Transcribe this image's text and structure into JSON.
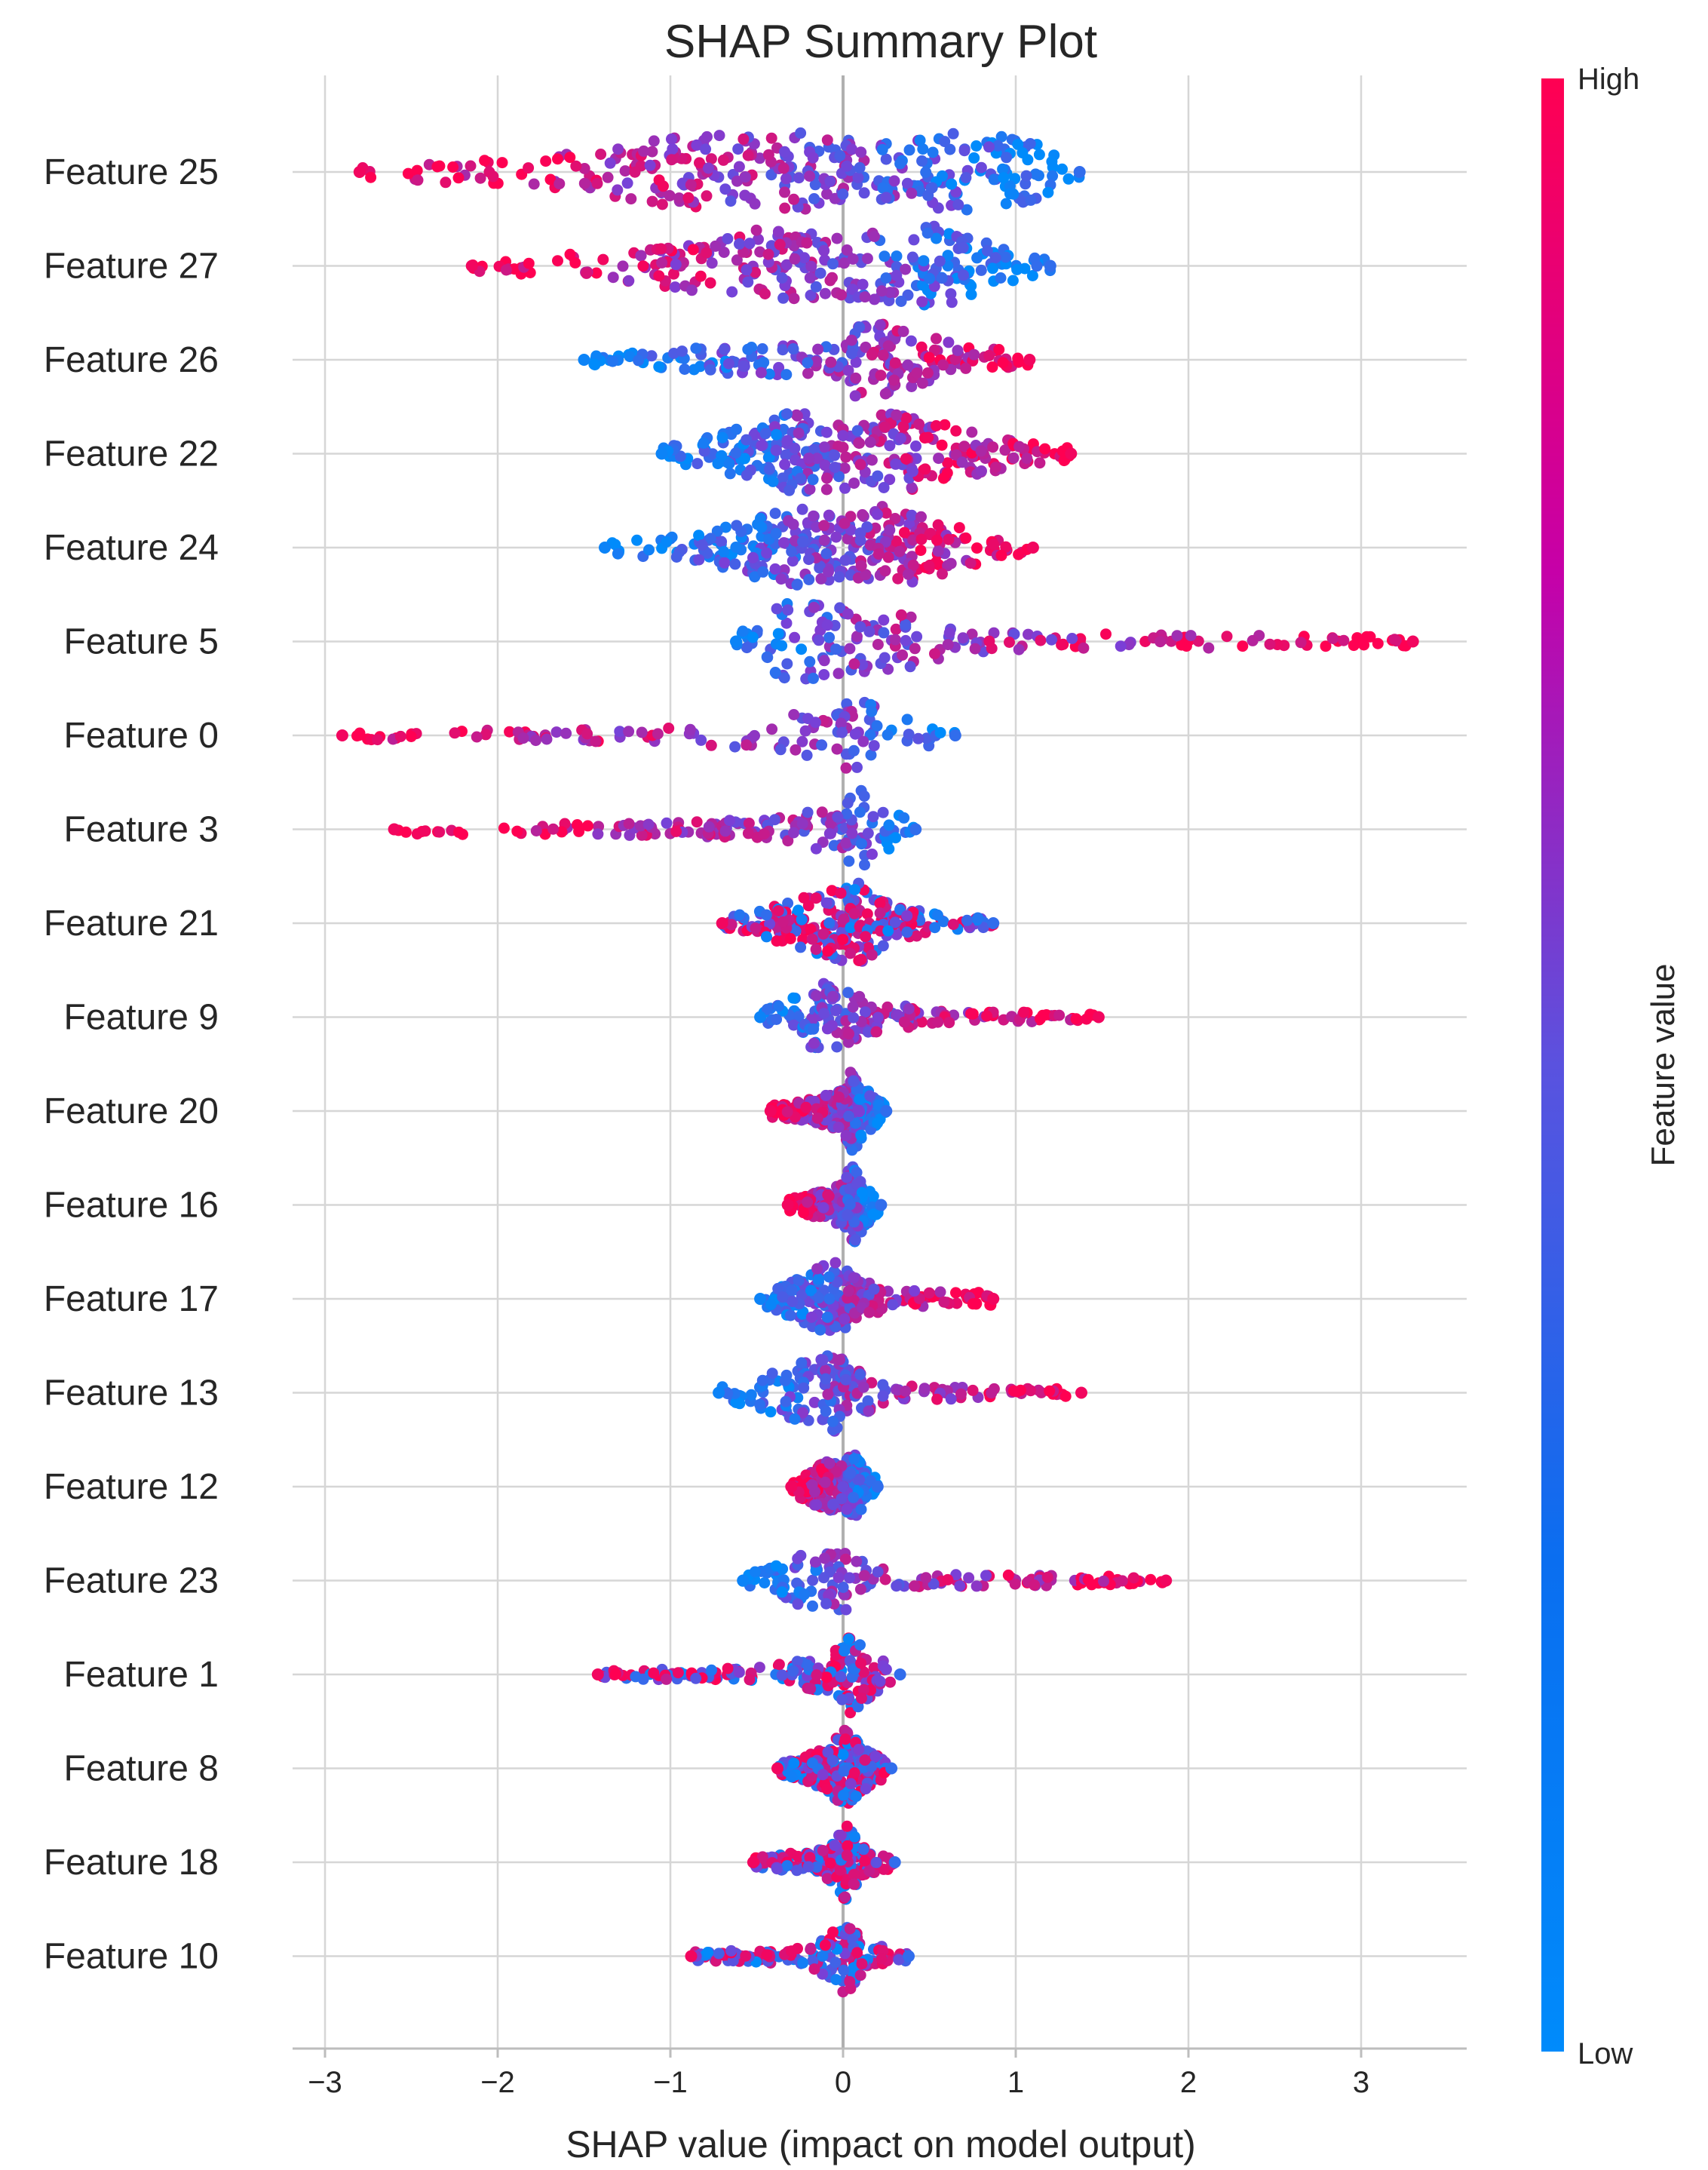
{
  "chart_data": {
    "type": "scatter",
    "title": "SHAP Summary Plot",
    "xlabel": "SHAP value (impact on model output)",
    "xlim": [
      -3.2,
      3.6
    ],
    "x_ticks": [
      {
        "value": -3,
        "label": "−3"
      },
      {
        "value": -2,
        "label": "−2"
      },
      {
        "value": -1,
        "label": "−1"
      },
      {
        "value": 0,
        "label": "0"
      },
      {
        "value": 1,
        "label": "1"
      },
      {
        "value": 2,
        "label": "2"
      },
      {
        "value": 3,
        "label": "3"
      }
    ],
    "grid": true,
    "colorbar": {
      "label": "Feature value",
      "high_label": "High",
      "low_label": "Low",
      "high_color": "#ff0052",
      "mid_color": "#7b3fd6",
      "low_color": "#008bfb"
    },
    "features": [
      {
        "name": "Feature 25",
        "min": -2.8,
        "max": 1.37,
        "mode": "lowpos",
        "profile": [
          [
            -2.8,
            0.15
          ],
          [
            -1.8,
            0.35
          ],
          [
            -1.0,
            0.8
          ],
          [
            -0.3,
            1.0
          ],
          [
            0.2,
            0.65
          ],
          [
            0.7,
            1.0
          ],
          [
            1.1,
            0.7
          ],
          [
            1.37,
            0.2
          ]
        ]
      },
      {
        "name": "Feature 27",
        "min": -2.15,
        "max": 1.2,
        "mode": "lowpos",
        "profile": [
          [
            -2.15,
            0.12
          ],
          [
            -1.2,
            0.4
          ],
          [
            -0.5,
            0.85
          ],
          [
            0.0,
            0.75
          ],
          [
            0.4,
            0.9
          ],
          [
            0.6,
            1.0
          ],
          [
            0.9,
            0.45
          ],
          [
            1.2,
            0.15
          ]
        ]
      },
      {
        "name": "Feature 26",
        "min": -1.5,
        "max": 1.08,
        "mode": "lowneg",
        "profile": [
          [
            -1.5,
            0.1
          ],
          [
            -0.7,
            0.35
          ],
          [
            -0.1,
            0.5
          ],
          [
            0.1,
            0.95
          ],
          [
            0.3,
            0.8
          ],
          [
            0.6,
            0.45
          ],
          [
            1.08,
            0.12
          ]
        ]
      },
      {
        "name": "Feature 22",
        "min": -1.05,
        "max": 1.32,
        "mode": "lowneg",
        "profile": [
          [
            -1.05,
            0.15
          ],
          [
            -0.6,
            0.6
          ],
          [
            -0.3,
            1.0
          ],
          [
            0.0,
            0.85
          ],
          [
            0.3,
            0.95
          ],
          [
            0.7,
            0.6
          ],
          [
            1.0,
            0.3
          ],
          [
            1.32,
            0.15
          ]
        ]
      },
      {
        "name": "Feature 24",
        "min": -1.38,
        "max": 1.1,
        "mode": "lowneg",
        "profile": [
          [
            -1.38,
            0.12
          ],
          [
            -0.8,
            0.35
          ],
          [
            -0.3,
            1.0
          ],
          [
            0.0,
            0.7
          ],
          [
            0.25,
            1.0
          ],
          [
            0.6,
            0.6
          ],
          [
            0.9,
            0.25
          ],
          [
            1.1,
            0.12
          ]
        ]
      },
      {
        "name": "Feature 5",
        "min": -0.62,
        "max": 3.3,
        "mode": "lowneg",
        "profile": [
          [
            -0.62,
            0.15
          ],
          [
            -0.3,
            1.0
          ],
          [
            0.0,
            0.8
          ],
          [
            0.4,
            0.6
          ],
          [
            0.8,
            0.25
          ],
          [
            1.5,
            0.18
          ],
          [
            2.5,
            0.15
          ],
          [
            3.3,
            0.1
          ]
        ]
      },
      {
        "name": "Feature 0",
        "min": -2.9,
        "max": 0.65,
        "mode": "lowpos",
        "profile": [
          [
            -2.9,
            0.1
          ],
          [
            -1.2,
            0.15
          ],
          [
            -0.5,
            0.3
          ],
          [
            -0.05,
            0.7
          ],
          [
            0.1,
            1.0
          ],
          [
            0.25,
            0.5
          ],
          [
            0.65,
            0.12
          ]
        ]
      },
      {
        "name": "Feature 3",
        "min": -2.6,
        "max": 0.42,
        "mode": "lowpos",
        "profile": [
          [
            -2.6,
            0.12
          ],
          [
            -1.0,
            0.15
          ],
          [
            -0.3,
            0.3
          ],
          [
            0.0,
            0.7
          ],
          [
            0.1,
            0.95
          ],
          [
            0.25,
            0.5
          ],
          [
            0.42,
            0.12
          ]
        ]
      },
      {
        "name": "Feature 21",
        "min": -0.7,
        "max": 0.87,
        "mode": "mixed",
        "profile": [
          [
            -0.7,
            0.12
          ],
          [
            -0.3,
            0.55
          ],
          [
            0.0,
            0.9
          ],
          [
            0.1,
            0.95
          ],
          [
            0.3,
            0.4
          ],
          [
            0.6,
            0.18
          ],
          [
            0.87,
            0.1
          ]
        ]
      },
      {
        "name": "Feature 9",
        "min": -0.48,
        "max": 1.48,
        "mode": "lowneg",
        "profile": [
          [
            -0.48,
            0.12
          ],
          [
            -0.1,
            0.9
          ],
          [
            0.0,
            0.7
          ],
          [
            0.2,
            0.35
          ],
          [
            0.6,
            0.15
          ],
          [
            1.3,
            0.1
          ],
          [
            1.48,
            0.08
          ]
        ]
      },
      {
        "name": "Feature 20",
        "min": -0.42,
        "max": 0.25,
        "mode": "lowpos",
        "profile": [
          [
            -0.42,
            0.15
          ],
          [
            -0.15,
            0.3
          ],
          [
            0.0,
            0.5
          ],
          [
            0.05,
            1.0
          ],
          [
            0.12,
            0.6
          ],
          [
            0.25,
            0.12
          ]
        ]
      },
      {
        "name": "Feature 16",
        "min": -0.32,
        "max": 0.22,
        "mode": "lowpos",
        "profile": [
          [
            -0.32,
            0.15
          ],
          [
            -0.1,
            0.35
          ],
          [
            0.0,
            0.5
          ],
          [
            0.05,
            1.0
          ],
          [
            0.12,
            0.55
          ],
          [
            0.22,
            0.12
          ]
        ]
      },
      {
        "name": "Feature 17",
        "min": -0.48,
        "max": 0.87,
        "mode": "lowneg",
        "profile": [
          [
            -0.48,
            0.12
          ],
          [
            -0.05,
            0.9
          ],
          [
            0.05,
            0.6
          ],
          [
            0.3,
            0.2
          ],
          [
            0.87,
            0.15
          ]
        ]
      },
      {
        "name": "Feature 13",
        "min": -0.72,
        "max": 1.38,
        "mode": "lowneg",
        "profile": [
          [
            -0.72,
            0.12
          ],
          [
            -0.05,
            0.95
          ],
          [
            0.05,
            0.6
          ],
          [
            0.3,
            0.18
          ],
          [
            1.2,
            0.1
          ],
          [
            1.38,
            0.08
          ]
        ]
      },
      {
        "name": "Feature 12",
        "min": -0.3,
        "max": 0.2,
        "mode": "lowpos",
        "profile": [
          [
            -0.3,
            0.15
          ],
          [
            -0.1,
            0.6
          ],
          [
            0.0,
            0.5
          ],
          [
            0.05,
            0.9
          ],
          [
            0.1,
            0.6
          ],
          [
            0.2,
            0.15
          ]
        ]
      },
      {
        "name": "Feature 23",
        "min": -0.58,
        "max": 1.87,
        "mode": "lowneg",
        "profile": [
          [
            -0.58,
            0.1
          ],
          [
            -0.05,
            0.9
          ],
          [
            0.05,
            0.6
          ],
          [
            0.3,
            0.15
          ],
          [
            1.8,
            0.1
          ],
          [
            1.87,
            0.08
          ]
        ]
      },
      {
        "name": "Feature 1",
        "min": -1.42,
        "max": 0.33,
        "mode": "mixed",
        "profile": [
          [
            -1.42,
            0.1
          ],
          [
            -0.6,
            0.15
          ],
          [
            -0.1,
            0.4
          ],
          [
            0.05,
            0.95
          ],
          [
            0.2,
            0.4
          ],
          [
            0.33,
            0.12
          ]
        ]
      },
      {
        "name": "Feature 8",
        "min": -0.38,
        "max": 0.28,
        "mode": "mixed",
        "profile": [
          [
            -0.38,
            0.12
          ],
          [
            -0.1,
            0.5
          ],
          [
            0.0,
            0.95
          ],
          [
            0.1,
            0.6
          ],
          [
            0.28,
            0.12
          ]
        ]
      },
      {
        "name": "Feature 18",
        "min": -0.52,
        "max": 0.3,
        "mode": "mixed",
        "profile": [
          [
            -0.52,
            0.12
          ],
          [
            -0.1,
            0.35
          ],
          [
            0.02,
            0.95
          ],
          [
            0.1,
            0.4
          ],
          [
            0.3,
            0.12
          ]
        ]
      },
      {
        "name": "Feature 10",
        "min": -0.88,
        "max": 0.38,
        "mode": "mixed",
        "profile": [
          [
            -0.88,
            0.1
          ],
          [
            -0.2,
            0.2
          ],
          [
            0.02,
            0.95
          ],
          [
            0.15,
            0.3
          ],
          [
            0.38,
            0.1
          ]
        ]
      }
    ]
  }
}
